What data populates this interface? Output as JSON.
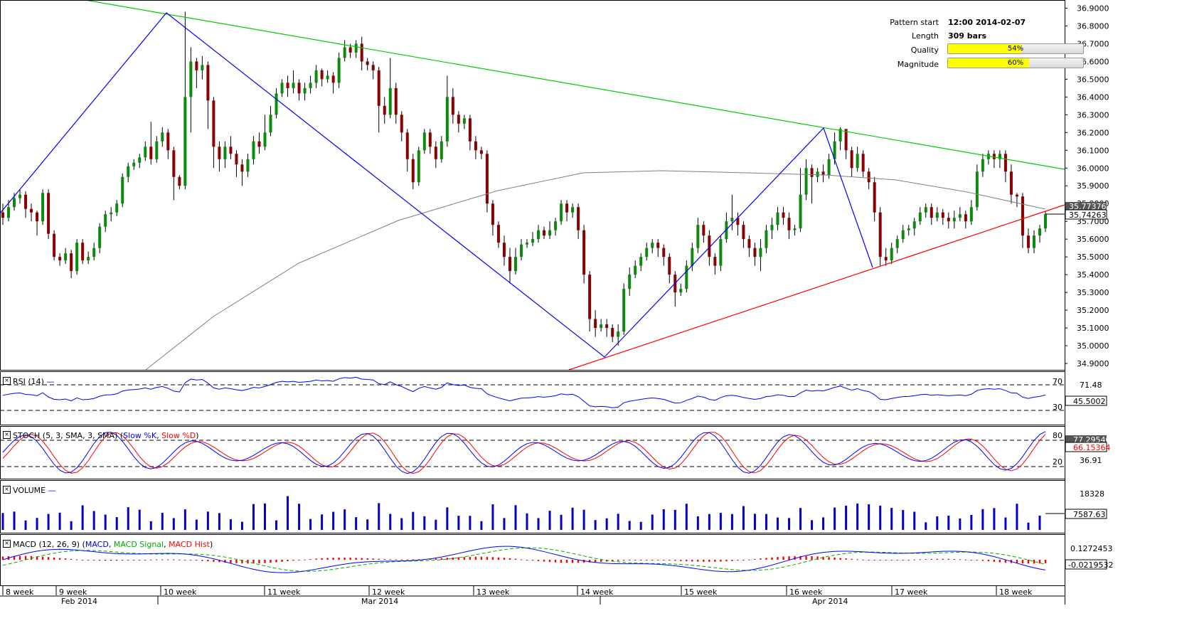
{
  "info": {
    "pattern_start_label": "Pattern start",
    "pattern_start_value": "12:00 2014-02-07",
    "length_label": "Length",
    "length_value": "309 bars",
    "quality_label": "Quality",
    "quality_value": "54%",
    "quality_fraction": 0.54,
    "magnitude_label": "Magnitude",
    "magnitude_value": "60%",
    "magnitude_fraction": 0.6
  },
  "colors": {
    "bull": "#0b8a0b",
    "bear": "#8b0000",
    "green_line": "#00cc00",
    "red_line": "#ff0000",
    "zigzag": "#0000ff",
    "ma": "#808080",
    "rsi": "#0000ff",
    "stoch_k": "#0000ff",
    "stoch_d": "#ff0000",
    "volume": "#0000cc",
    "macd": "#0000ff",
    "signal": "#00aa00",
    "hist": "#ff0000"
  },
  "panels": {
    "rsi": {
      "title": "RSI (14)",
      "levels": [
        "70",
        "30"
      ],
      "value": "45.5002",
      "level_value": "71.48"
    },
    "stoch": {
      "title_prefix": "STOCH (5, 3, SMA, 3, SMA)",
      "k_label": "Slow %K",
      "d_label": "Slow %D",
      "levels": [
        "80",
        "20"
      ],
      "value": "66.15364",
      "value_k": "77.29540",
      "level_value": "36.91"
    },
    "volume": {
      "title": "VOLUME",
      "axis_value": "18328",
      "value": "7587.63"
    },
    "macd": {
      "title_prefix": "MACD (12, 26, 9)",
      "macd_label": "MACD",
      "signal_label": "MACD Signal",
      "hist_label": "MACD Hist",
      "axis_value": "0.1272453",
      "value": "-0.0219532"
    }
  },
  "price_axis": {
    "labels": [
      "36.9000",
      "36.8000",
      "36.7000",
      "36.6000",
      "36.5000",
      "36.4000",
      "36.3000",
      "36.2000",
      "36.1000",
      "36.0000",
      "35.9000",
      "35.8000",
      "35.7000",
      "35.6000",
      "35.5000",
      "35.4000",
      "35.3000",
      "35.2000",
      "35.1000",
      "35.0000",
      "34.9000"
    ],
    "current_price": "35.74263",
    "ma_value": "35.77376"
  },
  "time_axis": {
    "weeks": [
      "8 week",
      "9 week",
      "10 week",
      "11 week",
      "12 week",
      "13 week",
      "14 week",
      "15 week",
      "16 week",
      "17 week",
      "18 week"
    ],
    "months": [
      "Feb 2014",
      "Mar 2014",
      "Apr 2014"
    ]
  },
  "chart_data": {
    "type": "candlestick",
    "ylim": [
      34.88,
      36.93
    ],
    "candles": [
      [
        35.75,
        35.72,
        35.68,
        35.8
      ],
      [
        35.72,
        35.78,
        35.7,
        35.82
      ],
      [
        35.78,
        35.83,
        35.76,
        35.86
      ],
      [
        35.83,
        35.85,
        35.8,
        35.88
      ],
      [
        35.85,
        35.77,
        35.72,
        35.87
      ],
      [
        35.77,
        35.75,
        35.7,
        35.8
      ],
      [
        35.75,
        35.7,
        35.62,
        35.76
      ],
      [
        35.7,
        35.86,
        35.68,
        35.88
      ],
      [
        35.86,
        35.63,
        35.6,
        35.88
      ],
      [
        35.63,
        35.5,
        35.48,
        35.65
      ],
      [
        35.5,
        35.48,
        35.45,
        35.52
      ],
      [
        35.48,
        35.52,
        35.46,
        35.55
      ],
      [
        35.52,
        35.42,
        35.38,
        35.54
      ],
      [
        35.42,
        35.58,
        35.4,
        35.6
      ],
      [
        35.58,
        35.48,
        35.46,
        35.6
      ],
      [
        35.48,
        35.5,
        35.46,
        35.53
      ],
      [
        35.5,
        35.55,
        35.48,
        35.58
      ],
      [
        35.55,
        35.67,
        35.52,
        35.69
      ],
      [
        35.67,
        35.74,
        35.64,
        35.76
      ],
      [
        35.74,
        35.75,
        35.7,
        35.78
      ],
      [
        35.75,
        35.8,
        35.73,
        35.82
      ],
      [
        35.8,
        35.95,
        35.78,
        35.97
      ],
      [
        35.95,
        36.01,
        35.92,
        36.03
      ],
      [
        36.01,
        36.03,
        35.99,
        36.05
      ],
      [
        36.03,
        36.06,
        36.0,
        36.08
      ],
      [
        36.06,
        36.12,
        36.04,
        36.15
      ],
      [
        36.12,
        36.05,
        36.02,
        36.26
      ],
      [
        36.05,
        36.15,
        36.03,
        36.18
      ],
      [
        36.15,
        36.2,
        36.12,
        36.23
      ],
      [
        36.2,
        36.1,
        36.05,
        36.22
      ],
      [
        36.1,
        35.95,
        35.82,
        36.12
      ],
      [
        35.95,
        35.9,
        35.88,
        35.96
      ],
      [
        35.9,
        36.4,
        35.88,
        36.88
      ],
      [
        36.4,
        36.6,
        36.2,
        36.68
      ],
      [
        36.6,
        36.55,
        36.45,
        36.62
      ],
      [
        36.55,
        36.58,
        36.5,
        36.63
      ],
      [
        36.58,
        36.38,
        36.22,
        36.6
      ],
      [
        36.38,
        36.12,
        36.0,
        36.4
      ],
      [
        36.12,
        36.05,
        35.98,
        36.15
      ],
      [
        36.05,
        36.12,
        36.0,
        36.15
      ],
      [
        36.12,
        36.08,
        36.05,
        36.18
      ],
      [
        36.08,
        36.02,
        35.95,
        36.1
      ],
      [
        36.02,
        35.98,
        35.9,
        36.05
      ],
      [
        35.98,
        36.05,
        35.95,
        36.08
      ],
      [
        36.05,
        36.15,
        36.02,
        36.18
      ],
      [
        36.15,
        36.12,
        36.08,
        36.2
      ],
      [
        36.12,
        36.2,
        36.1,
        36.3
      ],
      [
        36.2,
        36.3,
        36.18,
        36.35
      ],
      [
        36.3,
        36.42,
        36.28,
        36.45
      ],
      [
        36.42,
        36.48,
        36.4,
        36.5
      ],
      [
        36.48,
        36.45,
        36.4,
        36.52
      ],
      [
        36.45,
        36.48,
        36.42,
        36.55
      ],
      [
        36.48,
        36.42,
        36.38,
        36.5
      ],
      [
        36.42,
        36.45,
        36.38,
        36.48
      ],
      [
        36.45,
        36.48,
        36.42,
        36.52
      ],
      [
        36.48,
        36.55,
        36.45,
        36.58
      ],
      [
        36.55,
        36.5,
        36.46,
        36.56
      ],
      [
        36.5,
        36.52,
        36.48,
        36.55
      ],
      [
        36.52,
        36.48,
        36.42,
        36.54
      ],
      [
        36.48,
        36.62,
        36.45,
        36.65
      ],
      [
        36.62,
        36.68,
        36.6,
        36.72
      ],
      [
        36.68,
        36.65,
        36.62,
        36.7
      ],
      [
        36.65,
        36.7,
        36.62,
        36.72
      ],
      [
        36.7,
        36.6,
        36.55,
        36.74
      ],
      [
        36.6,
        36.58,
        36.55,
        36.62
      ],
      [
        36.58,
        36.55,
        36.5,
        36.6
      ],
      [
        36.55,
        36.35,
        36.2,
        36.57
      ],
      [
        36.35,
        36.3,
        36.25,
        36.4
      ],
      [
        36.3,
        36.45,
        36.28,
        36.62
      ],
      [
        36.45,
        36.3,
        36.25,
        36.48
      ],
      [
        36.3,
        36.2,
        36.15,
        36.32
      ],
      [
        36.2,
        36.05,
        35.98,
        36.22
      ],
      [
        36.05,
        35.92,
        35.88,
        36.08
      ],
      [
        35.92,
        36.1,
        35.9,
        36.12
      ],
      [
        36.1,
        36.2,
        36.08,
        36.22
      ],
      [
        36.2,
        36.12,
        36.08,
        36.22
      ],
      [
        36.12,
        36.05,
        36.0,
        36.15
      ],
      [
        36.05,
        36.15,
        36.03,
        36.18
      ],
      [
        36.15,
        36.4,
        36.12,
        36.52
      ],
      [
        36.4,
        36.3,
        36.25,
        36.45
      ],
      [
        36.3,
        36.25,
        36.2,
        36.32
      ],
      [
        36.25,
        36.28,
        36.22,
        36.3
      ],
      [
        36.28,
        36.15,
        36.1,
        36.3
      ],
      [
        36.15,
        36.1,
        36.05,
        36.18
      ],
      [
        36.1,
        36.08,
        36.05,
        36.12
      ],
      [
        36.08,
        35.8,
        35.75,
        36.1
      ],
      [
        35.8,
        35.68,
        35.62,
        35.82
      ],
      [
        35.68,
        35.58,
        35.55,
        35.7
      ],
      [
        35.58,
        35.5,
        35.45,
        35.62
      ],
      [
        35.5,
        35.42,
        35.35,
        35.55
      ],
      [
        35.42,
        35.5,
        35.4,
        35.55
      ],
      [
        35.5,
        35.57,
        35.48,
        35.6
      ],
      [
        35.57,
        35.58,
        35.55,
        35.6
      ],
      [
        35.58,
        35.6,
        35.56,
        35.64
      ],
      [
        35.6,
        35.65,
        35.58,
        35.68
      ],
      [
        35.65,
        35.62,
        35.6,
        35.67
      ],
      [
        35.62,
        35.65,
        35.6,
        35.7
      ],
      [
        35.65,
        35.7,
        35.62,
        35.72
      ],
      [
        35.7,
        35.8,
        35.68,
        35.82
      ],
      [
        35.8,
        35.75,
        35.7,
        35.82
      ],
      [
        35.75,
        35.78,
        35.72,
        35.8
      ],
      [
        35.78,
        35.65,
        35.6,
        35.8
      ],
      [
        35.65,
        35.4,
        35.35,
        35.68
      ],
      [
        35.4,
        35.15,
        35.08,
        35.42
      ],
      [
        35.15,
        35.1,
        35.05,
        35.2
      ],
      [
        35.1,
        35.12,
        35.08,
        35.15
      ],
      [
        35.12,
        35.1,
        35.05,
        35.15
      ],
      [
        35.1,
        35.05,
        35.02,
        35.12
      ],
      [
        35.05,
        35.08,
        35.0,
        35.12
      ],
      [
        35.08,
        35.32,
        35.06,
        35.35
      ],
      [
        35.32,
        35.4,
        35.28,
        35.44
      ],
      [
        35.4,
        35.45,
        35.38,
        35.48
      ],
      [
        35.45,
        35.5,
        35.42,
        35.52
      ],
      [
        35.5,
        35.55,
        35.48,
        35.58
      ],
      [
        35.55,
        35.58,
        35.52,
        35.6
      ],
      [
        35.58,
        35.55,
        35.5,
        35.6
      ],
      [
        35.55,
        35.5,
        35.45,
        35.57
      ],
      [
        35.5,
        35.4,
        35.35,
        35.52
      ],
      [
        35.4,
        35.3,
        35.22,
        35.42
      ],
      [
        35.3,
        35.32,
        35.28,
        35.35
      ],
      [
        35.32,
        35.45,
        35.3,
        35.48
      ],
      [
        35.45,
        35.55,
        35.42,
        35.58
      ],
      [
        35.55,
        35.68,
        35.52,
        35.72
      ],
      [
        35.68,
        35.62,
        35.58,
        35.7
      ],
      [
        35.62,
        35.5,
        35.45,
        35.65
      ],
      [
        35.5,
        35.45,
        35.4,
        35.52
      ],
      [
        35.45,
        35.6,
        35.42,
        35.62
      ],
      [
        35.6,
        35.7,
        35.58,
        35.75
      ],
      [
        35.7,
        35.72,
        35.65,
        35.85
      ],
      [
        35.72,
        35.68,
        35.62,
        35.75
      ],
      [
        35.68,
        35.6,
        35.55,
        35.7
      ],
      [
        35.6,
        35.55,
        35.5,
        35.62
      ],
      [
        35.55,
        35.5,
        35.45,
        35.58
      ],
      [
        35.5,
        35.55,
        35.42,
        35.6
      ],
      [
        35.55,
        35.65,
        35.52,
        35.68
      ],
      [
        35.65,
        35.68,
        35.6,
        35.72
      ],
      [
        35.68,
        35.75,
        35.65,
        35.78
      ],
      [
        35.75,
        35.72,
        35.68,
        35.78
      ],
      [
        35.72,
        35.65,
        35.6,
        35.75
      ],
      [
        35.65,
        35.66,
        35.62,
        35.68
      ],
      [
        35.66,
        35.85,
        35.64,
        36.0
      ],
      [
        35.85,
        36.0,
        35.82,
        36.05
      ],
      [
        36.0,
        35.95,
        35.8,
        36.02
      ],
      [
        35.95,
        35.98,
        35.92,
        36.0
      ],
      [
        35.98,
        35.96,
        35.92,
        36.02
      ],
      [
        35.96,
        36.05,
        35.94,
        36.08
      ],
      [
        36.05,
        36.15,
        36.02,
        36.2
      ],
      [
        36.15,
        36.22,
        36.1,
        36.23
      ],
      [
        36.22,
        36.1,
        36.05,
        36.22
      ],
      [
        36.1,
        36.0,
        35.95,
        36.12
      ],
      [
        36.0,
        36.08,
        35.98,
        36.12
      ],
      [
        36.08,
        35.98,
        35.95,
        36.1
      ],
      [
        35.98,
        35.92,
        35.88,
        36.0
      ],
      [
        35.92,
        35.75,
        35.7,
        35.95
      ],
      [
        35.75,
        35.5,
        35.45,
        35.78
      ],
      [
        35.5,
        35.48,
        35.45,
        35.55
      ],
      [
        35.48,
        35.55,
        35.46,
        35.58
      ],
      [
        35.55,
        35.6,
        35.52,
        35.62
      ],
      [
        35.6,
        35.65,
        35.58,
        35.68
      ],
      [
        35.65,
        35.66,
        35.62,
        35.68
      ],
      [
        35.66,
        35.7,
        35.62,
        35.72
      ],
      [
        35.7,
        35.75,
        35.68,
        35.78
      ],
      [
        35.75,
        35.78,
        35.72,
        35.8
      ],
      [
        35.78,
        35.72,
        35.68,
        35.8
      ],
      [
        35.72,
        35.75,
        35.7,
        35.78
      ],
      [
        35.75,
        35.72,
        35.68,
        35.77
      ],
      [
        35.72,
        35.7,
        35.66,
        35.75
      ],
      [
        35.7,
        35.72,
        35.66,
        35.76
      ],
      [
        35.72,
        35.74,
        35.7,
        35.78
      ],
      [
        35.74,
        35.7,
        35.66,
        35.76
      ],
      [
        35.7,
        35.78,
        35.68,
        35.82
      ],
      [
        35.78,
        35.98,
        35.76,
        36.02
      ],
      [
        35.98,
        36.05,
        35.95,
        36.08
      ],
      [
        36.05,
        36.08,
        36.02,
        36.1
      ],
      [
        36.08,
        36.05,
        36.0,
        36.1
      ],
      [
        36.05,
        36.08,
        36.0,
        36.1
      ],
      [
        36.08,
        35.98,
        35.92,
        36.1
      ],
      [
        35.98,
        35.85,
        35.8,
        36.02
      ],
      [
        35.85,
        35.84,
        35.78,
        35.86
      ],
      [
        35.84,
        35.62,
        35.55,
        35.86
      ],
      [
        35.62,
        35.55,
        35.52,
        35.66
      ],
      [
        35.55,
        35.62,
        35.52,
        35.65
      ],
      [
        35.62,
        35.66,
        35.58,
        35.68
      ],
      [
        35.66,
        35.74,
        35.64,
        35.76
      ]
    ]
  }
}
